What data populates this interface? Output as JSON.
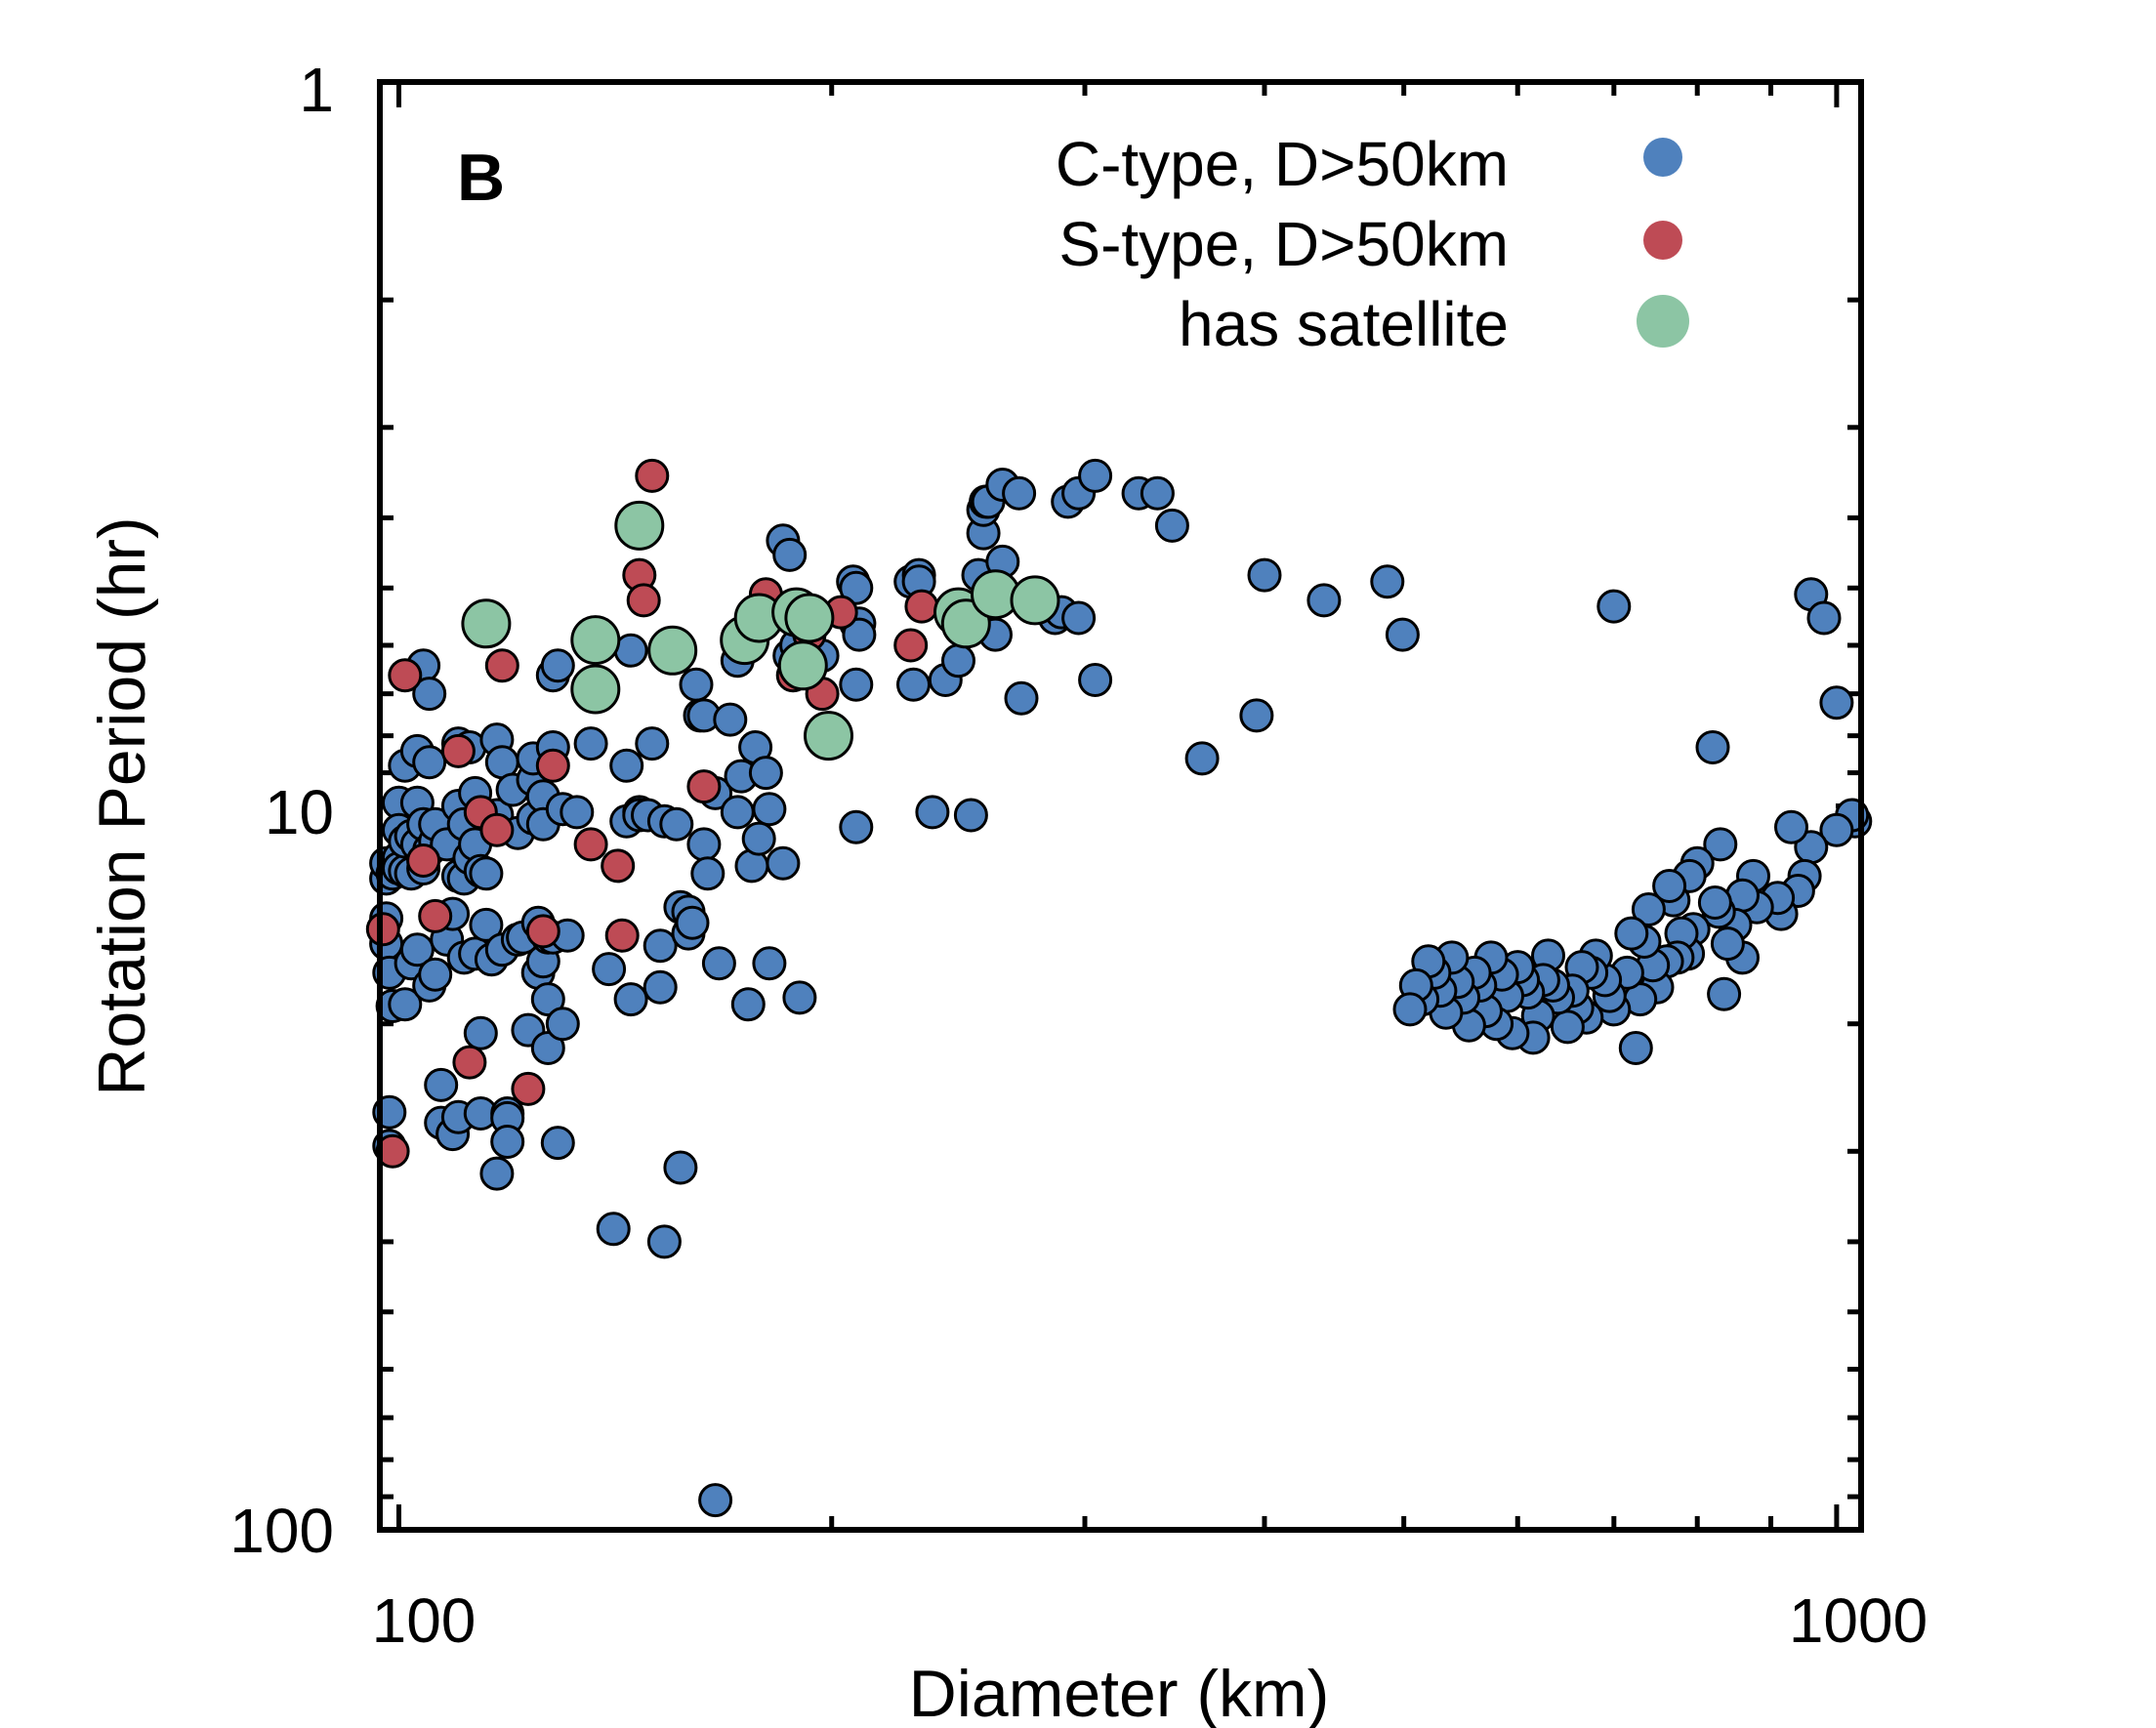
{
  "chart_data": {
    "type": "scatter",
    "panel_label": "B",
    "xlabel": "Diameter (km)",
    "ylabel": "Rotation Period (hr)",
    "x_scale": "log",
    "y_scale": "log",
    "y_inverted": true,
    "xlim": [
      97,
      1040
    ],
    "ylim": [
      1,
      100
    ],
    "x_tick_labels": [
      "100",
      "1000"
    ],
    "y_tick_labels": [
      "1",
      "10",
      "100"
    ],
    "legend_position": "top-right",
    "colors": {
      "c_type": "#4f81bd",
      "s_type": "#be4b55",
      "satellite": "#8cc5a4"
    },
    "series": [
      {
        "name": "C-type, D>50km",
        "key": "c_type",
        "points": [
          [
            98,
            12.6
          ],
          [
            98,
            12.0
          ],
          [
            98,
            14.3
          ],
          [
            98,
            15.5
          ],
          [
            98.5,
            17.0
          ],
          [
            98.5,
            26.5
          ],
          [
            98.5,
            29.5
          ],
          [
            99,
            12.4
          ],
          [
            99,
            18.9
          ],
          [
            100,
            9.9
          ],
          [
            100,
            11.8
          ],
          [
            100,
            12.2
          ],
          [
            100,
            10.8
          ],
          [
            101,
            12.3
          ],
          [
            101,
            8.8
          ],
          [
            101,
            18.8
          ],
          [
            101,
            11.2
          ],
          [
            102,
            12.4
          ],
          [
            102,
            11.0
          ],
          [
            102,
            16.5
          ],
          [
            103,
            8.4
          ],
          [
            103,
            11.3
          ],
          [
            103,
            9.9
          ],
          [
            103,
            15.8
          ],
          [
            104,
            6.4
          ],
          [
            104,
            10.6
          ],
          [
            104,
            12.2
          ],
          [
            105,
            11.5
          ],
          [
            105,
            7.0
          ],
          [
            105,
            8.7
          ],
          [
            105,
            17.7
          ],
          [
            106,
            11.2
          ],
          [
            106,
            17.1
          ],
          [
            106,
            10.6
          ],
          [
            107,
            27.4
          ],
          [
            107,
            24.3
          ],
          [
            108,
            15.3
          ],
          [
            108,
            11.3
          ],
          [
            109,
            14.1
          ],
          [
            109,
            28.4
          ],
          [
            110,
            26.9
          ],
          [
            110,
            12.5
          ],
          [
            110,
            8.2
          ],
          [
            110,
            10.0
          ],
          [
            111,
            10.6
          ],
          [
            111,
            16.2
          ],
          [
            111,
            12.6
          ],
          [
            112,
            11.8
          ],
          [
            112,
            8.3
          ],
          [
            113,
            16.0
          ],
          [
            113,
            9.6
          ],
          [
            113,
            11.3
          ],
          [
            114,
            26.6
          ],
          [
            114,
            12.3
          ],
          [
            114,
            20.6
          ],
          [
            115,
            12.4
          ],
          [
            115,
            14.6
          ],
          [
            116,
            16.3
          ],
          [
            117,
            10.3
          ],
          [
            117,
            32.2
          ],
          [
            117,
            8.1
          ],
          [
            118,
            15.8
          ],
          [
            118,
            8.7
          ],
          [
            119,
            26.6
          ],
          [
            119,
            27.0
          ],
          [
            119,
            29.1
          ],
          [
            120,
            9.5
          ],
          [
            121,
            15.3
          ],
          [
            121,
            10.9
          ],
          [
            122,
            15.2
          ],
          [
            123,
            20.4
          ],
          [
            124,
            9.2
          ],
          [
            124,
            8.6
          ],
          [
            124,
            10.4
          ],
          [
            125,
            14.5
          ],
          [
            125,
            17.0
          ],
          [
            126,
            16.4
          ],
          [
            126,
            9.7
          ],
          [
            126,
            10.6
          ],
          [
            127,
            15.2
          ],
          [
            127,
            18.5
          ],
          [
            127,
            21.6
          ],
          [
            128,
            8.3
          ],
          [
            128,
            15.2
          ],
          [
            128,
            6.6
          ],
          [
            129,
            29.2
          ],
          [
            129,
            6.4
          ],
          [
            130,
            10.1
          ],
          [
            130,
            20.0
          ],
          [
            131,
            15.1
          ],
          [
            133,
            10.2
          ],
          [
            136,
            8.2
          ],
          [
            140,
            16.8
          ],
          [
            141,
            38.4
          ],
          [
            144,
            8.8
          ],
          [
            144,
            10.5
          ],
          [
            145,
            18.5
          ],
          [
            145,
            6.1
          ],
          [
            147,
            10.2
          ],
          [
            147,
            10.3
          ],
          [
            149,
            10.3
          ],
          [
            150,
            8.2
          ],
          [
            152,
            17.8
          ],
          [
            152,
            15.6
          ],
          [
            153,
            40.0
          ],
          [
            153,
            10.5
          ],
          [
            156,
            10.6
          ],
          [
            157,
            31.6
          ],
          [
            157,
            13.8
          ],
          [
            159,
            14.0
          ],
          [
            159,
            15.0
          ],
          [
            160,
            14.5
          ],
          [
            161,
            6.8
          ],
          [
            162,
            7.5
          ],
          [
            163,
            11.3
          ],
          [
            163,
            7.5
          ],
          [
            164,
            12.4
          ],
          [
            166,
            9.6
          ],
          [
            166,
            91.0
          ],
          [
            167,
            16.5
          ],
          [
            170,
            7.6
          ],
          [
            172,
            10.2
          ],
          [
            172,
            6.3
          ],
          [
            173,
            9.1
          ],
          [
            173,
            5.9
          ],
          [
            175,
            18.8
          ],
          [
            176,
            12.1
          ],
          [
            177,
            8.3
          ],
          [
            178,
            11.1
          ],
          [
            180,
            9.0
          ],
          [
            181,
            10.1
          ],
          [
            181,
            16.5
          ],
          [
            185,
            12.0
          ],
          [
            185,
            4.3
          ],
          [
            187,
            4.5
          ],
          [
            187,
            6.2
          ],
          [
            189,
            6.0
          ],
          [
            190,
            18.4
          ],
          [
            191,
            5.6
          ],
          [
            192,
            5.4
          ],
          [
            197,
            6.2
          ],
          [
            207,
            4.9
          ],
          [
            208,
            5.0
          ],
          [
            208,
            10.7
          ],
          [
            208,
            6.8
          ],
          [
            208,
            5.6
          ],
          [
            209,
            5.6
          ],
          [
            209,
            5.8
          ],
          [
            227,
            4.9
          ],
          [
            228,
            6.8
          ],
          [
            230,
            4.8
          ],
          [
            230,
            4.9
          ],
          [
            235,
            10.2
          ],
          [
            240,
            6.7
          ],
          [
            245,
            6.3
          ],
          [
            250,
            10.3
          ],
          [
            253,
            4.8
          ],
          [
            255,
            4.2
          ],
          [
            255,
            3.9
          ],
          [
            256,
            3.8
          ],
          [
            257,
            3.8
          ],
          [
            259,
            5.1
          ],
          [
            260,
            5.8
          ],
          [
            263,
            3.6
          ],
          [
            263,
            4.6
          ],
          [
            270,
            3.7
          ],
          [
            271,
            7.1
          ],
          [
            286,
            5.5
          ],
          [
            289,
            5.4
          ],
          [
            292,
            3.8
          ],
          [
            297,
            5.5
          ],
          [
            297,
            3.7
          ],
          [
            305,
            3.5
          ],
          [
            305,
            6.7
          ],
          [
            327,
            3.7
          ],
          [
            337,
            3.7
          ],
          [
            345,
            4.1
          ],
          [
            362,
            8.6
          ],
          [
            395,
            7.5
          ],
          [
            400,
            4.8
          ],
          [
            440,
            5.2
          ],
          [
            487,
            4.9
          ],
          [
            499,
            5.8
          ],
          [
            700,
            5.3
          ],
          [
            820,
            8.3
          ],
          [
            960,
            5.1
          ],
          [
            980,
            5.5
          ],
          [
            1000,
            7.2
          ],
          [
            1030,
            10.5
          ],
          [
            1025,
            10.3
          ],
          [
            1000,
            10.8
          ],
          [
            960,
            11.4
          ],
          [
            950,
            12.5
          ],
          [
            940,
            13.1
          ],
          [
            930,
            10.7
          ],
          [
            915,
            14.1
          ],
          [
            910,
            13.4
          ],
          [
            880,
            13.8
          ],
          [
            875,
            12.5
          ],
          [
            860,
            16.2
          ],
          [
            860,
            13.3
          ],
          [
            850,
            14.6
          ],
          [
            840,
            15.5
          ],
          [
            835,
            18.2
          ],
          [
            830,
            11.3
          ],
          [
            828,
            14.0
          ],
          [
            823,
            13.6
          ],
          [
            800,
            12.0
          ],
          [
            795,
            14.8
          ],
          [
            790,
            12.5
          ],
          [
            788,
            16.0
          ],
          [
            780,
            15.0
          ],
          [
            775,
            16.2
          ],
          [
            770,
            13.5
          ],
          [
            765,
            12.9
          ],
          [
            762,
            16.4
          ],
          [
            750,
            17.8
          ],
          [
            745,
            16.6
          ],
          [
            740,
            13.9
          ],
          [
            735,
            15.4
          ],
          [
            730,
            18.5
          ],
          [
            725,
            21.6
          ],
          [
            720,
            15.0
          ],
          [
            715,
            17.0
          ],
          [
            700,
            19.1
          ],
          [
            695,
            18.3
          ],
          [
            690,
            17.4
          ],
          [
            680,
            16.1
          ],
          [
            675,
            17.0
          ],
          [
            670,
            19.6
          ],
          [
            665,
            16.7
          ],
          [
            660,
            19.0
          ],
          [
            655,
            18.0
          ],
          [
            650,
            20.2
          ],
          [
            640,
            18.4
          ],
          [
            635,
            17.7
          ],
          [
            630,
            16.1
          ],
          [
            625,
            17.4
          ],
          [
            620,
            19.5
          ],
          [
            615,
            20.9
          ],
          [
            610,
            18.1
          ],
          [
            605,
            17.4
          ],
          [
            600,
            16.7
          ],
          [
            595,
            20.6
          ],
          [
            590,
            18.3
          ],
          [
            585,
            17.1
          ],
          [
            580,
            20.0
          ],
          [
            575,
            16.2
          ],
          [
            570,
            19.2
          ],
          [
            565,
            17.7
          ],
          [
            560,
            17.0
          ],
          [
            555,
            20.1
          ],
          [
            550,
            18.4
          ],
          [
            545,
            17.5
          ],
          [
            540,
            16.2
          ],
          [
            535,
            19.3
          ],
          [
            530,
            18.0
          ],
          [
            525,
            17.0
          ],
          [
            520,
            16.4
          ],
          [
            515,
            18.5
          ],
          [
            510,
            17.7
          ],
          [
            505,
            19.1
          ]
        ]
      },
      {
        "name": "S-type, D>50km",
        "key": "s_type",
        "points": [
          [
            97.5,
            14.8
          ],
          [
            99,
            30.0
          ],
          [
            101,
            6.6
          ],
          [
            104,
            11.9
          ],
          [
            106,
            14.2
          ],
          [
            110,
            8.4
          ],
          [
            112,
            22.6
          ],
          [
            114,
            10.2
          ],
          [
            117,
            10.8
          ],
          [
            118,
            6.4
          ],
          [
            123,
            24.6
          ],
          [
            126,
            14.9
          ],
          [
            128,
            8.8
          ],
          [
            136,
            11.3
          ],
          [
            142,
            12.1
          ],
          [
            143,
            15.1
          ],
          [
            147,
            4.8
          ],
          [
            148,
            5.2
          ],
          [
            150,
            3.5
          ],
          [
            163,
            9.4
          ],
          [
            176,
            5.6
          ],
          [
            180,
            5.1
          ],
          [
            188,
            6.6
          ],
          [
            193,
            5.8
          ],
          [
            197,
            7.0
          ],
          [
            203,
            5.4
          ],
          [
            227,
            6.0
          ],
          [
            231,
            5.3
          ]
        ]
      },
      {
        "name": "has satellite",
        "key": "satellite",
        "points": [
          [
            115,
            5.6
          ],
          [
            137,
            5.9
          ],
          [
            137,
            6.9
          ],
          [
            147,
            4.1
          ],
          [
            155,
            6.1
          ],
          [
            174,
            5.9
          ],
          [
            178,
            5.5
          ],
          [
            189,
            5.4
          ],
          [
            191,
            6.4
          ],
          [
            193,
            5.5
          ],
          [
            199,
            8.0
          ],
          [
            245,
            5.4
          ],
          [
            248,
            5.6
          ],
          [
            260,
            5.1
          ],
          [
            277,
            5.2
          ]
        ]
      }
    ]
  }
}
